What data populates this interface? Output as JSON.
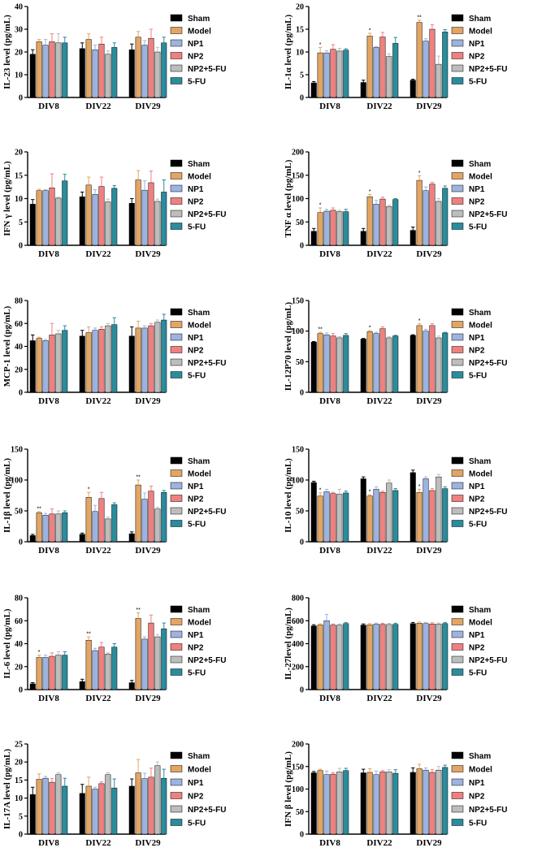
{
  "figure": {
    "legend": [
      "Sham",
      "Model",
      "NP1",
      "NP2",
      "NP2+5-FU",
      "5-FU"
    ],
    "colors": [
      "#000000",
      "#E3A563",
      "#9DB3E0",
      "#F08080",
      "#BDBDBD",
      "#2A8C9C"
    ],
    "groups": [
      "DIV8",
      "DIV22",
      "DIV29"
    ]
  },
  "chart_data": [
    {
      "type": "bar",
      "ylabel": "IL-23 level (pg/mL)",
      "ylim": [
        0,
        40
      ],
      "yticks": [
        "0",
        "10",
        "20",
        "30",
        "40"
      ],
      "categories": [
        "DIV8",
        "DIV22",
        "DIV29"
      ],
      "series": [
        {
          "name": "Sham",
          "values": [
            19,
            21.5,
            21
          ],
          "errors": [
            2,
            2.5,
            2.5
          ]
        },
        {
          "name": "Model",
          "values": [
            24.5,
            25.5,
            26.5
          ],
          "errors": [
            1,
            2.5,
            2.5
          ]
        },
        {
          "name": "NP1",
          "values": [
            23,
            21,
            23
          ],
          "errors": [
            2.5,
            2,
            2
          ]
        },
        {
          "name": "NP2",
          "values": [
            24.5,
            23.5,
            26
          ],
          "errors": [
            3.5,
            3,
            4
          ]
        },
        {
          "name": "NP2+5-FU",
          "values": [
            24,
            19,
            20
          ],
          "errors": [
            4,
            1.5,
            2
          ]
        },
        {
          "name": "5-FU",
          "values": [
            24,
            22,
            24
          ],
          "errors": [
            2.5,
            2,
            2.5
          ]
        }
      ]
    },
    {
      "type": "bar",
      "ylabel": "IL-1α level (pg/mL)",
      "ylim": [
        0,
        20
      ],
      "yticks": [
        "0",
        "5",
        "10",
        "15",
        "20"
      ],
      "categories": [
        "DIV8",
        "DIV22",
        "DIV29"
      ],
      "series": [
        {
          "name": "Sham",
          "values": [
            3.2,
            3.3,
            3.8
          ],
          "errors": [
            0.3,
            0.5,
            0.2
          ]
        },
        {
          "name": "Model",
          "values": [
            9.8,
            13.5,
            16.5
          ],
          "errors": [
            1.2,
            0.6,
            0.5
          ]
        },
        {
          "name": "NP1",
          "values": [
            9.8,
            11,
            12.4
          ],
          "errors": [
            0.5,
            0.2,
            0.5
          ]
        },
        {
          "name": "NP2",
          "values": [
            10.6,
            13.3,
            15
          ],
          "errors": [
            1,
            1,
            1
          ]
        },
        {
          "name": "NP2+5-FU",
          "values": [
            10.2,
            9,
            7.3
          ],
          "errors": [
            0.6,
            0.6,
            1.8
          ]
        },
        {
          "name": "5-FU",
          "values": [
            10.4,
            11.9,
            14.4
          ],
          "errors": [
            0.3,
            1.3,
            0.5
          ]
        }
      ],
      "annotations": [
        "*",
        "*",
        "**"
      ]
    },
    {
      "type": "bar",
      "ylabel": "IFN γ level (pg/mL)",
      "ylim": [
        0,
        20
      ],
      "yticks": [
        "0",
        "5",
        "10",
        "15",
        "20"
      ],
      "categories": [
        "DIV8",
        "DIV22",
        "DIV29"
      ],
      "series": [
        {
          "name": "Sham",
          "values": [
            8.8,
            10.4,
            9
          ],
          "errors": [
            1,
            1,
            1
          ]
        },
        {
          "name": "Model",
          "values": [
            11.7,
            12.9,
            14
          ],
          "errors": [
            0.3,
            1.7,
            2
          ]
        },
        {
          "name": "NP1",
          "values": [
            11.7,
            10.9,
            11.8
          ],
          "errors": [
            0.2,
            1,
            2
          ]
        },
        {
          "name": "NP2",
          "values": [
            12.3,
            12.6,
            13.4
          ],
          "errors": [
            3,
            2,
            2.5
          ]
        },
        {
          "name": "NP2+5-FU",
          "values": [
            10.1,
            9.3,
            9.4
          ],
          "errors": [
            0.2,
            0.6,
            0.5
          ]
        },
        {
          "name": "5-FU",
          "values": [
            13.8,
            12.2,
            11.4
          ],
          "errors": [
            1.4,
            0.6,
            2.6
          ]
        }
      ]
    },
    {
      "type": "bar",
      "ylabel": "TNF α level (pg/mL)",
      "ylim": [
        0,
        200
      ],
      "yticks": [
        "0",
        "50",
        "100",
        "150",
        "200"
      ],
      "categories": [
        "DIV8",
        "DIV22",
        "DIV29"
      ],
      "series": [
        {
          "name": "Sham",
          "values": [
            30,
            30,
            32
          ],
          "errors": [
            6,
            6,
            7
          ]
        },
        {
          "name": "Model",
          "values": [
            70,
            104,
            139
          ],
          "errors": [
            10,
            5,
            10
          ]
        },
        {
          "name": "NP1",
          "values": [
            73,
            88,
            117
          ],
          "errors": [
            4,
            8,
            8
          ]
        },
        {
          "name": "NP2",
          "values": [
            75,
            99,
            131
          ],
          "errors": [
            5,
            4,
            4
          ]
        },
        {
          "name": "NP2+5-FU",
          "values": [
            72,
            83,
            94
          ],
          "errors": [
            3,
            3,
            6
          ]
        },
        {
          "name": "5-FU",
          "values": [
            72,
            98,
            122
          ],
          "errors": [
            5,
            2,
            5
          ]
        }
      ],
      "annotations": [
        "*",
        "*",
        "*"
      ]
    },
    {
      "type": "bar",
      "ylabel": "MCP-1 level (pg/mL)",
      "ylim": [
        0,
        80
      ],
      "yticks": [
        "0",
        "20",
        "40",
        "60",
        "80"
      ],
      "categories": [
        "DIV8",
        "DIV22",
        "DIV29"
      ],
      "series": [
        {
          "name": "Sham",
          "values": [
            45,
            49,
            49
          ],
          "errors": [
            5,
            5,
            8
          ]
        },
        {
          "name": "Model",
          "values": [
            47,
            52,
            56
          ],
          "errors": [
            1,
            5,
            6
          ]
        },
        {
          "name": "NP1",
          "values": [
            45,
            54,
            56
          ],
          "errors": [
            1,
            2,
            2
          ]
        },
        {
          "name": "NP2",
          "values": [
            50,
            55,
            58
          ],
          "errors": [
            10,
            2,
            2
          ]
        },
        {
          "name": "NP2+5-FU",
          "values": [
            51,
            58,
            61
          ],
          "errors": [
            3,
            2,
            2
          ]
        },
        {
          "name": "5-FU",
          "values": [
            54,
            59,
            63
          ],
          "errors": [
            4,
            6,
            5
          ]
        }
      ]
    },
    {
      "type": "bar",
      "ylabel": "IL-12P70 level (pg/mL)",
      "ylim": [
        0,
        150
      ],
      "yticks": [
        "0",
        "50",
        "100",
        "150"
      ],
      "categories": [
        "DIV8",
        "DIV22",
        "DIV29"
      ],
      "series": [
        {
          "name": "Sham",
          "values": [
            82,
            87,
            93
          ],
          "errors": [
            1,
            1,
            1
          ]
        },
        {
          "name": "Model",
          "values": [
            96,
            99,
            109
          ],
          "errors": [
            2,
            2,
            3
          ]
        },
        {
          "name": "NP1",
          "values": [
            94,
            96,
            100
          ],
          "errors": [
            3,
            2,
            3
          ]
        },
        {
          "name": "NP2",
          "values": [
            92,
            104,
            109
          ],
          "errors": [
            4,
            3,
            3
          ]
        },
        {
          "name": "NP2+5-FU",
          "values": [
            89,
            89,
            89
          ],
          "errors": [
            2,
            2,
            3
          ]
        },
        {
          "name": "5-FU",
          "values": [
            93,
            92,
            97
          ],
          "errors": [
            3,
            1,
            1
          ]
        }
      ],
      "annotations": [
        "**",
        "*",
        "*"
      ]
    },
    {
      "type": "bar",
      "ylabel": "IL-1β level (pg/mL)",
      "ylim": [
        0,
        150
      ],
      "yticks": [
        "0",
        "50",
        "100",
        "150"
      ],
      "categories": [
        "DIV8",
        "DIV22",
        "DIV29"
      ],
      "series": [
        {
          "name": "Sham",
          "values": [
            10,
            12,
            13
          ],
          "errors": [
            2,
            2,
            3
          ]
        },
        {
          "name": "Model",
          "values": [
            47,
            72,
            92
          ],
          "errors": [
            2,
            8,
            8
          ]
        },
        {
          "name": "NP1",
          "values": [
            43,
            49,
            69
          ],
          "errors": [
            3,
            10,
            10
          ]
        },
        {
          "name": "NP2",
          "values": [
            45,
            70,
            82
          ],
          "errors": [
            8,
            10,
            8
          ]
        },
        {
          "name": "NP2+5-FU",
          "values": [
            45,
            37,
            53
          ],
          "errors": [
            5,
            3,
            3
          ]
        },
        {
          "name": "5-FU",
          "values": [
            47,
            60,
            80
          ],
          "errors": [
            3,
            3,
            3
          ]
        }
      ],
      "annotations": [
        "**",
        "*",
        "**"
      ]
    },
    {
      "type": "bar",
      "ylabel": "IL-10 level (pg/mL)",
      "ylim": [
        0,
        150
      ],
      "yticks": [
        "0",
        "50",
        "100",
        "150"
      ],
      "categories": [
        "DIV8",
        "DIV22",
        "DIV29"
      ],
      "series": [
        {
          "name": "Sham",
          "values": [
            96,
            102,
            112
          ],
          "errors": [
            2,
            3,
            4
          ]
        },
        {
          "name": "Model",
          "values": [
            74,
            74,
            80
          ],
          "errors": [
            5,
            2,
            5
          ]
        },
        {
          "name": "NP1",
          "values": [
            81,
            85,
            102
          ],
          "errors": [
            4,
            4,
            3
          ]
        },
        {
          "name": "NP2",
          "values": [
            78,
            80,
            83
          ],
          "errors": [
            2,
            2,
            3
          ]
        },
        {
          "name": "NP2+5-FU",
          "values": [
            77,
            95,
            105
          ],
          "errors": [
            8,
            5,
            4
          ]
        },
        {
          "name": "5-FU",
          "values": [
            79,
            83,
            86
          ],
          "errors": [
            3,
            3,
            3
          ]
        }
      ],
      "annotations": [
        "*",
        "*",
        "*"
      ]
    },
    {
      "type": "bar",
      "ylabel": "IL-6 level (pg/mL)",
      "ylim": [
        0,
        80
      ],
      "yticks": [
        "0",
        "20",
        "40",
        "60",
        "80"
      ],
      "categories": [
        "DIV8",
        "DIV22",
        "DIV29"
      ],
      "series": [
        {
          "name": "Sham",
          "values": [
            5,
            7,
            6
          ],
          "errors": [
            1,
            2,
            2
          ]
        },
        {
          "name": "Model",
          "values": [
            28,
            43,
            62
          ],
          "errors": [
            2,
            3,
            5
          ]
        },
        {
          "name": "NP1",
          "values": [
            28,
            34,
            44
          ],
          "errors": [
            2,
            2,
            2
          ]
        },
        {
          "name": "NP2",
          "values": [
            29,
            37,
            58
          ],
          "errors": [
            3,
            4,
            7
          ]
        },
        {
          "name": "NP2+5-FU",
          "values": [
            30,
            31,
            46
          ],
          "errors": [
            3,
            1,
            2
          ]
        },
        {
          "name": "5-FU",
          "values": [
            30,
            37,
            53
          ],
          "errors": [
            3,
            3,
            5
          ]
        }
      ],
      "annotations": [
        "*",
        "**",
        "**"
      ]
    },
    {
      "type": "bar",
      "ylabel": "IL-27level (pg/mL)",
      "ylim": [
        0,
        800
      ],
      "yticks": [
        "0",
        "200",
        "400",
        "600",
        "800"
      ],
      "categories": [
        "DIV8",
        "DIV22",
        "DIV29"
      ],
      "series": [
        {
          "name": "Sham",
          "values": [
            555,
            562,
            575
          ],
          "errors": [
            10,
            10,
            10
          ]
        },
        {
          "name": "Model",
          "values": [
            563,
            565,
            578
          ],
          "errors": [
            10,
            10,
            10
          ]
        },
        {
          "name": "NP1",
          "values": [
            600,
            570,
            575
          ],
          "errors": [
            55,
            10,
            10
          ]
        },
        {
          "name": "NP2",
          "values": [
            562,
            568,
            572
          ],
          "errors": [
            10,
            10,
            10
          ]
        },
        {
          "name": "NP2+5-FU",
          "values": [
            562,
            567,
            570
          ],
          "errors": [
            10,
            10,
            10
          ]
        },
        {
          "name": "5-FU",
          "values": [
            575,
            568,
            575
          ],
          "errors": [
            10,
            10,
            10
          ]
        }
      ]
    },
    {
      "type": "bar",
      "ylabel": "IL-17A level (pg/mL)",
      "ylim": [
        0,
        25
      ],
      "yticks": [
        "0",
        "5",
        "10",
        "15",
        "20",
        "25"
      ],
      "categories": [
        "DIV8",
        "DIV22",
        "DIV29"
      ],
      "series": [
        {
          "name": "Sham",
          "values": [
            11,
            11.3,
            13.3
          ],
          "errors": [
            2,
            2.5,
            2
          ]
        },
        {
          "name": "Model",
          "values": [
            15.2,
            13.3,
            17
          ],
          "errors": [
            1.5,
            2.5,
            3.7
          ]
        },
        {
          "name": "NP1",
          "values": [
            15.5,
            12.5,
            15.4
          ],
          "errors": [
            0.5,
            0.5,
            1.5
          ]
        },
        {
          "name": "NP2",
          "values": [
            14.4,
            14,
            15.8
          ],
          "errors": [
            1,
            0.5,
            2.5
          ]
        },
        {
          "name": "NP2+5-FU",
          "values": [
            16.5,
            16.5,
            19
          ],
          "errors": [
            0.5,
            0.5,
            1
          ]
        },
        {
          "name": "5-FU",
          "values": [
            13.3,
            12.8,
            15.5
          ],
          "errors": [
            2.2,
            2.5,
            2.5
          ]
        }
      ]
    },
    {
      "type": "bar",
      "ylabel": "IFN β level (pg/mL)",
      "ylim": [
        0,
        200
      ],
      "yticks": [
        "0",
        "50",
        "100",
        "150",
        "200"
      ],
      "categories": [
        "DIV8",
        "DIV22",
        "DIV29"
      ],
      "series": [
        {
          "name": "Sham",
          "values": [
            136,
            136,
            137
          ],
          "errors": [
            3,
            8,
            10
          ]
        },
        {
          "name": "Model",
          "values": [
            141,
            137,
            145
          ],
          "errors": [
            3,
            8,
            10
          ]
        },
        {
          "name": "NP1",
          "values": [
            132,
            132,
            142
          ],
          "errors": [
            8,
            8,
            5
          ]
        },
        {
          "name": "NP2",
          "values": [
            133,
            138,
            137
          ],
          "errors": [
            3,
            3,
            6
          ]
        },
        {
          "name": "NP2+5-FU",
          "values": [
            138,
            138,
            142
          ],
          "errors": [
            8,
            5,
            8
          ]
        },
        {
          "name": "5-FU",
          "values": [
            141,
            135,
            148
          ],
          "errors": [
            5,
            8,
            5
          ]
        }
      ]
    }
  ]
}
